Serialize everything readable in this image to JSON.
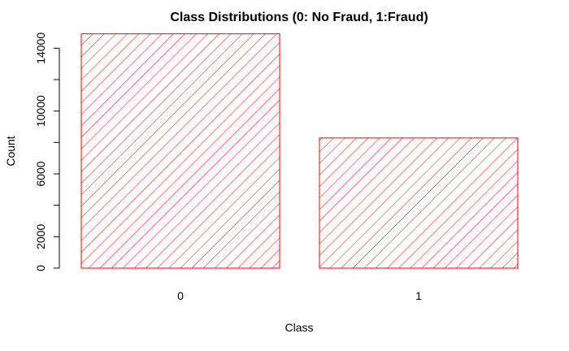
{
  "chart_data": {
    "type": "bar",
    "title": "Class Distributions (0: No Fraud, 1:Fraud)",
    "xlabel": "Class",
    "ylabel": "Count",
    "categories": [
      "0",
      "1"
    ],
    "values": [
      14915,
      8285
    ],
    "ylim": [
      0,
      15000
    ],
    "yticks": [
      0,
      2000,
      6000,
      10000,
      14000
    ],
    "ytick_marks": [
      0,
      2000,
      4000,
      6000,
      8000,
      10000,
      12000,
      14000
    ],
    "grid": false,
    "legend": "none",
    "bar_fill": "hatched",
    "bar_color": "#ff0000",
    "axis_color": "#000000"
  }
}
